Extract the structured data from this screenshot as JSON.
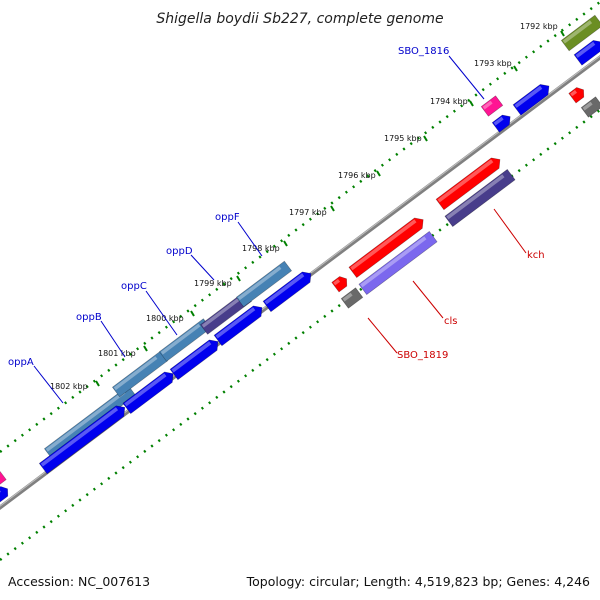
{
  "title": "Shigella boydii Sb227, complete genome",
  "footer": {
    "accession": "Accession: NC_007613",
    "summary": "Topology: circular; Length: 4,519,823 bp; Genes: 4,246"
  },
  "kbp_labels": [
    "1792 kbp",
    "1793 kbp",
    "1794 kbp",
    "1795 kbp",
    "1796 kbp",
    "1797 kbp",
    "1798 kbp",
    "1799 kbp",
    "1800 kbp",
    "1801 kbp",
    "1802 kbp"
  ],
  "gene_labels": {
    "oppA": "oppA",
    "oppB": "oppB",
    "oppC": "oppC",
    "oppD": "oppD",
    "oppF": "oppF",
    "sbo1816": "SBO_1816",
    "sbo1819": "SBO_1819",
    "cls": "cls",
    "kch": "kch"
  },
  "colors": {
    "backbone": "#808080",
    "tick": "#008000",
    "cds_blue": "#0000ee",
    "steel_blue": "#4682b4",
    "dark_slate": "#483d8b",
    "red": "#ff0000",
    "medium_slate": "#7b68ee",
    "gray": "#696969",
    "pink": "#ff1493",
    "olive": "#6b8e23",
    "label_blue": "#0000cc",
    "label_red": "#cc0000"
  }
}
